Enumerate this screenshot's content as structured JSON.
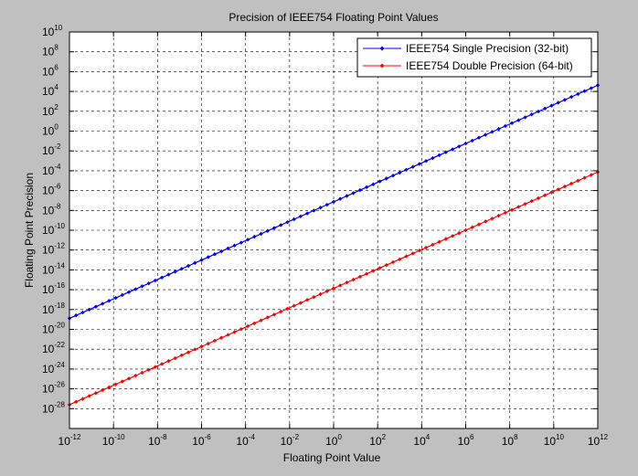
{
  "chart_data": {
    "type": "line",
    "title": "Precision of IEEE754 Floating Point Values",
    "xlabel": "Floating Point Value",
    "ylabel": "Floating Point Precision",
    "x_scale": "log",
    "y_scale": "log",
    "xlim": [
      1e-12,
      1000000000000.0
    ],
    "ylim": [
      1e-30,
      10000000000.0
    ],
    "grid": true,
    "legend_position": "top-right",
    "x_ticks": [
      {
        "base": "10",
        "exp": "-12",
        "value": 1e-12
      },
      {
        "base": "10",
        "exp": "-10",
        "value": 1e-10
      },
      {
        "base": "10",
        "exp": "-8",
        "value": 1e-08
      },
      {
        "base": "10",
        "exp": "-6",
        "value": 1e-06
      },
      {
        "base": "10",
        "exp": "-4",
        "value": 0.0001
      },
      {
        "base": "10",
        "exp": "-2",
        "value": 0.01
      },
      {
        "base": "10",
        "exp": "0",
        "value": 1
      },
      {
        "base": "10",
        "exp": "2",
        "value": 100.0
      },
      {
        "base": "10",
        "exp": "4",
        "value": 10000.0
      },
      {
        "base": "10",
        "exp": "6",
        "value": 1000000.0
      },
      {
        "base": "10",
        "exp": "8",
        "value": 100000000.0
      },
      {
        "base": "10",
        "exp": "10",
        "value": 10000000000.0
      },
      {
        "base": "10",
        "exp": "12",
        "value": 1000000000000.0
      }
    ],
    "y_ticks": [
      {
        "base": "10",
        "exp": "10",
        "value": 10000000000.0
      },
      {
        "base": "10",
        "exp": "8",
        "value": 100000000.0
      },
      {
        "base": "10",
        "exp": "6",
        "value": 1000000.0
      },
      {
        "base": "10",
        "exp": "4",
        "value": 10000.0
      },
      {
        "base": "10",
        "exp": "2",
        "value": 100.0
      },
      {
        "base": "10",
        "exp": "0",
        "value": 1
      },
      {
        "base": "10",
        "exp": "-2",
        "value": 0.01
      },
      {
        "base": "10",
        "exp": "-4",
        "value": 0.0001
      },
      {
        "base": "10",
        "exp": "-6",
        "value": 1e-06
      },
      {
        "base": "10",
        "exp": "-8",
        "value": 1e-08
      },
      {
        "base": "10",
        "exp": "-10",
        "value": 1e-10
      },
      {
        "base": "10",
        "exp": "-12",
        "value": 1e-12
      },
      {
        "base": "10",
        "exp": "-14",
        "value": 1e-14
      },
      {
        "base": "10",
        "exp": "-16",
        "value": 1e-16
      },
      {
        "base": "10",
        "exp": "-18",
        "value": 1e-18
      },
      {
        "base": "10",
        "exp": "-20",
        "value": 1e-20
      },
      {
        "base": "10",
        "exp": "-22",
        "value": 1e-22
      },
      {
        "base": "10",
        "exp": "-24",
        "value": 1e-24
      },
      {
        "base": "10",
        "exp": "-26",
        "value": 1e-26
      },
      {
        "base": "10",
        "exp": "-28",
        "value": 1e-28
      }
    ],
    "series": [
      {
        "name": "IEEE754 Single Precision (32-bit)",
        "color": "#0000ff",
        "x": [
          1e-12,
          1000000000000.0
        ],
        "y": [
          1.3e-19,
          42000.0
        ],
        "marker": "diamond",
        "marker_count": 80
      },
      {
        "name": "IEEE754 Double Precision (64-bit)",
        "color": "#ff0000",
        "x": [
          1e-12,
          1000000000000.0
        ],
        "y": [
          2.5e-28,
          7.5e-05
        ],
        "marker": "diamond",
        "marker_count": 80
      }
    ]
  }
}
